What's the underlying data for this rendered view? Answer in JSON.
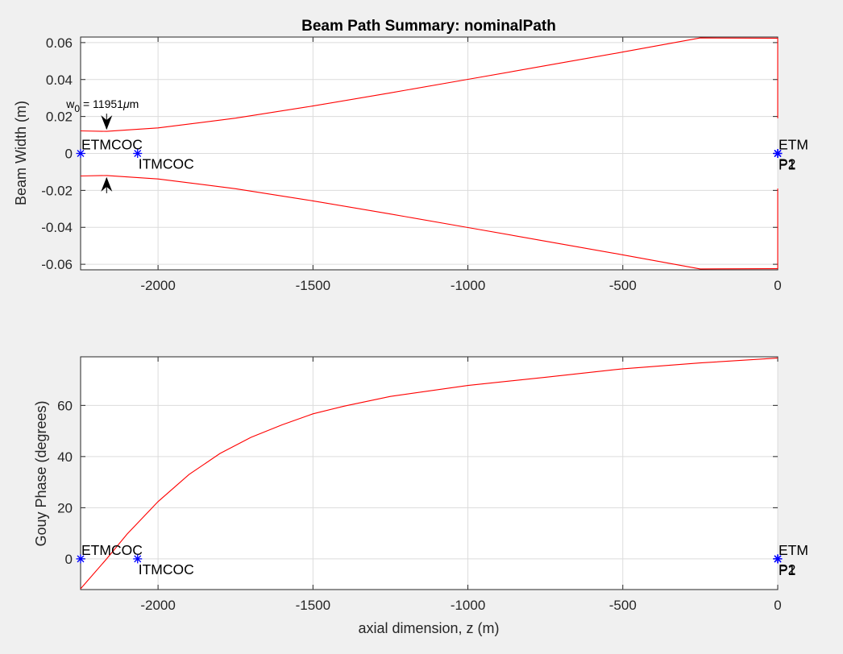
{
  "chart_data": [
    {
      "type": "line",
      "title": "Beam Path Summary: nominalPath",
      "xlabel": "",
      "ylabel": "Beam Width (m)",
      "xlim": [
        -2250,
        0
      ],
      "ylim": [
        -0.063,
        0.063
      ],
      "xticks": [
        -2000,
        -1500,
        -1000,
        -500,
        0
      ],
      "yticks": [
        -0.06,
        -0.04,
        -0.02,
        0,
        0.02,
        0.04,
        0.06
      ],
      "ytick_labels": [
        "-0.06",
        "-0.04",
        "-0.02",
        "0",
        "0.02",
        "0.04",
        "0.06"
      ],
      "grid": true,
      "waist": {
        "z": -2166,
        "w0_m": 0.011951
      },
      "beam_width_envelope": {
        "z": [
          -2250,
          -2166,
          -2000,
          -1750,
          -1500,
          -1250,
          -1000,
          -750,
          -500,
          -250,
          -1
        ],
        "upper": [
          0.0122,
          0.01195,
          0.0138,
          0.0191,
          0.0257,
          0.0328,
          0.0401,
          0.0475,
          0.0549,
          0.0625,
          0.0624
        ],
        "lower": [
          -0.0122,
          -0.01195,
          -0.0138,
          -0.0191,
          -0.0257,
          -0.0328,
          -0.0401,
          -0.0475,
          -0.0549,
          -0.0625,
          -0.0624
        ]
      },
      "waist_annotation": {
        "prefix": "w",
        "subscript": "0",
        "suffix": " = 11951",
        "mu": "μ",
        "unit": "m"
      },
      "components": [
        {
          "name": "ETMCOC",
          "z": -2250,
          "y": 0,
          "label_pos": "above"
        },
        {
          "name": "ITMCOC",
          "z": -2066,
          "y": 0,
          "label_pos": "below"
        },
        {
          "name": "ETM",
          "z": 0,
          "y": 0,
          "label_pos": "above"
        },
        {
          "name": "P2",
          "z": 0,
          "y": 0,
          "label_pos": "below"
        },
        {
          "name": "P1",
          "z": 0,
          "y": 0,
          "label_pos": "below"
        }
      ]
    },
    {
      "type": "line",
      "title": "",
      "xlabel": "axial dimension, z (m)",
      "ylabel": "Gouy Phase (degrees)",
      "xlim": [
        -2250,
        0
      ],
      "ylim": [
        -12,
        79
      ],
      "xticks": [
        -2000,
        -1500,
        -1000,
        -500,
        0
      ],
      "yticks": [
        0,
        20,
        40,
        60
      ],
      "ytick_labels": [
        "0",
        "20",
        "40",
        "60"
      ],
      "grid": true,
      "gouy_phase": {
        "z": [
          -2250,
          -2166,
          -2100,
          -2000,
          -1900,
          -1800,
          -1700,
          -1600,
          -1500,
          -1400,
          -1250,
          -1000,
          -750,
          -500,
          -250,
          0
        ],
        "phase_deg": [
          -11.7,
          0,
          9.7,
          22.4,
          33.0,
          41.2,
          47.5,
          52.4,
          56.7,
          59.7,
          63.5,
          67.8,
          71.0,
          74.3,
          76.6,
          78.5
        ]
      },
      "components": [
        {
          "name": "ETMCOC",
          "z": -2250,
          "y": 0,
          "label_pos": "above"
        },
        {
          "name": "ITMCOC",
          "z": -2066,
          "y": 0,
          "label_pos": "below"
        },
        {
          "name": "ETM",
          "z": 0,
          "y": 0,
          "label_pos": "above"
        },
        {
          "name": "P2",
          "z": 0,
          "y": 0,
          "label_pos": "below"
        },
        {
          "name": "P1",
          "z": 0,
          "y": 0,
          "label_pos": "below"
        }
      ]
    }
  ],
  "colors": {
    "curve": "#ff0000",
    "marker": "#0000ff",
    "background": "#f0f0f0"
  }
}
